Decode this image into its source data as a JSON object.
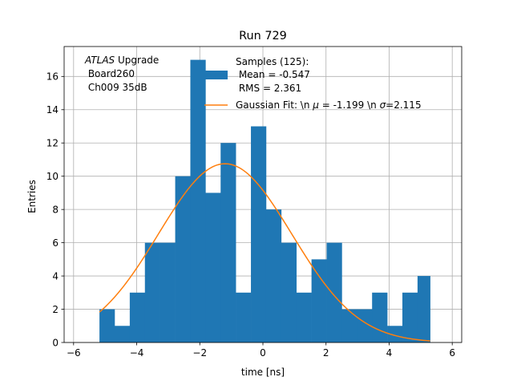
{
  "chart_data": {
    "type": "bar",
    "title": "Run 729",
    "xlabel": "time [ns]",
    "ylabel": "Entries",
    "xlim": [
      -6.3,
      6.3
    ],
    "ylim": [
      0,
      17.8
    ],
    "xticks": [
      -6,
      -4,
      -2,
      0,
      2,
      4,
      6
    ],
    "xtick_labels": [
      "−6",
      "−4",
      "−2",
      "0",
      "2",
      "4",
      "6"
    ],
    "yticks": [
      0,
      2,
      4,
      6,
      8,
      10,
      12,
      14,
      16
    ],
    "yticks_labels": [
      "0",
      "2",
      "4",
      "6",
      "8",
      "10",
      "12",
      "14",
      "16"
    ],
    "grid": true,
    "legend_position": "top-right",
    "annotation": {
      "experiment": "ATLAS",
      "experiment_suffix": " Upgrade",
      "line2": " Board260",
      "line3": " Ch009 35dB"
    },
    "histogram": {
      "name_lines": [
        "Samples (125):",
        " Mean = -0.547",
        " RMS = 2.361"
      ],
      "color": "#1f77b4",
      "bin_edges": [
        -5.18,
        -4.7,
        -4.22,
        -3.74,
        -3.26,
        -2.78,
        -2.3,
        -1.82,
        -1.34,
        -0.86,
        -0.38,
        0.1,
        0.58,
        1.06,
        1.54,
        2.02,
        2.5,
        2.98,
        3.46,
        3.94,
        4.42,
        4.9,
        5.3
      ],
      "counts": [
        2,
        1,
        3,
        6,
        6,
        10,
        17,
        9,
        12,
        3,
        13,
        8,
        6,
        3,
        5,
        6,
        2,
        2,
        3,
        1,
        3,
        4
      ]
    },
    "fit": {
      "name_prefix": "Gaussian Fit: \\n ",
      "mu_symbol": "μ",
      "mu_text": " = -1.199 \\n ",
      "sigma_symbol": "σ",
      "sigma_text": "=2.115",
      "color": "#ff7f0e",
      "amplitude": 10.75,
      "mu": -1.199,
      "sigma": 2.115,
      "x_range": [
        -5.18,
        5.3
      ]
    }
  }
}
